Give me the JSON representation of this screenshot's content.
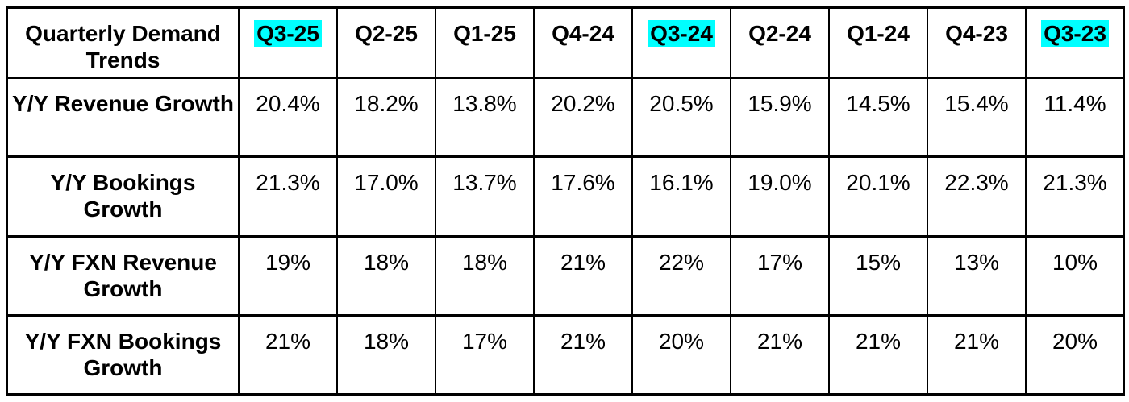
{
  "colors": {
    "highlight": "#00ffff",
    "border": "#000000",
    "text": "#000000",
    "background": "#ffffff"
  },
  "table": {
    "title": "Quarterly Demand Trends",
    "columns": [
      {
        "label": "Q3-25",
        "highlighted": true
      },
      {
        "label": "Q2-25",
        "highlighted": false
      },
      {
        "label": "Q1-25",
        "highlighted": false
      },
      {
        "label": "Q4-24",
        "highlighted": false
      },
      {
        "label": "Q3-24",
        "highlighted": true
      },
      {
        "label": "Q2-24",
        "highlighted": false
      },
      {
        "label": "Q1-24",
        "highlighted": false
      },
      {
        "label": "Q4-23",
        "highlighted": false
      },
      {
        "label": "Q3-23",
        "highlighted": true
      }
    ],
    "rows": [
      {
        "label": "Y/Y Revenue Growth",
        "values": [
          "20.4%",
          "18.2%",
          "13.8%",
          "20.2%",
          "20.5%",
          "15.9%",
          "14.5%",
          "15.4%",
          "11.4%"
        ]
      },
      {
        "label": "Y/Y Bookings Growth",
        "values": [
          "21.3%",
          "17.0%",
          "13.7%",
          "17.6%",
          "16.1%",
          "19.0%",
          "20.1%",
          "22.3%",
          "21.3%"
        ]
      },
      {
        "label": "Y/Y FXN Revenue Growth",
        "values": [
          "19%",
          "18%",
          "18%",
          "21%",
          "22%",
          "17%",
          "15%",
          "13%",
          "10%"
        ]
      },
      {
        "label": "Y/Y FXN Bookings Growth",
        "values": [
          "21%",
          "18%",
          "17%",
          "21%",
          "20%",
          "21%",
          "21%",
          "21%",
          "20%"
        ]
      }
    ]
  },
  "chart_data": {
    "type": "table",
    "title": "Quarterly Demand Trends",
    "categories": [
      "Q3-25",
      "Q2-25",
      "Q1-25",
      "Q4-24",
      "Q3-24",
      "Q2-24",
      "Q1-24",
      "Q4-23",
      "Q3-23"
    ],
    "highlighted_categories": [
      "Q3-25",
      "Q3-24",
      "Q3-23"
    ],
    "unit": "%",
    "series": [
      {
        "name": "Y/Y Revenue Growth",
        "values": [
          20.4,
          18.2,
          13.8,
          20.2,
          20.5,
          15.9,
          14.5,
          15.4,
          11.4
        ]
      },
      {
        "name": "Y/Y Bookings Growth",
        "values": [
          21.3,
          17.0,
          13.7,
          17.6,
          16.1,
          19.0,
          20.1,
          22.3,
          21.3
        ]
      },
      {
        "name": "Y/Y FXN Revenue Growth",
        "values": [
          19,
          18,
          18,
          21,
          22,
          17,
          15,
          13,
          10
        ]
      },
      {
        "name": "Y/Y FXN Bookings Growth",
        "values": [
          21,
          18,
          17,
          21,
          20,
          21,
          21,
          21,
          20
        ]
      }
    ]
  }
}
